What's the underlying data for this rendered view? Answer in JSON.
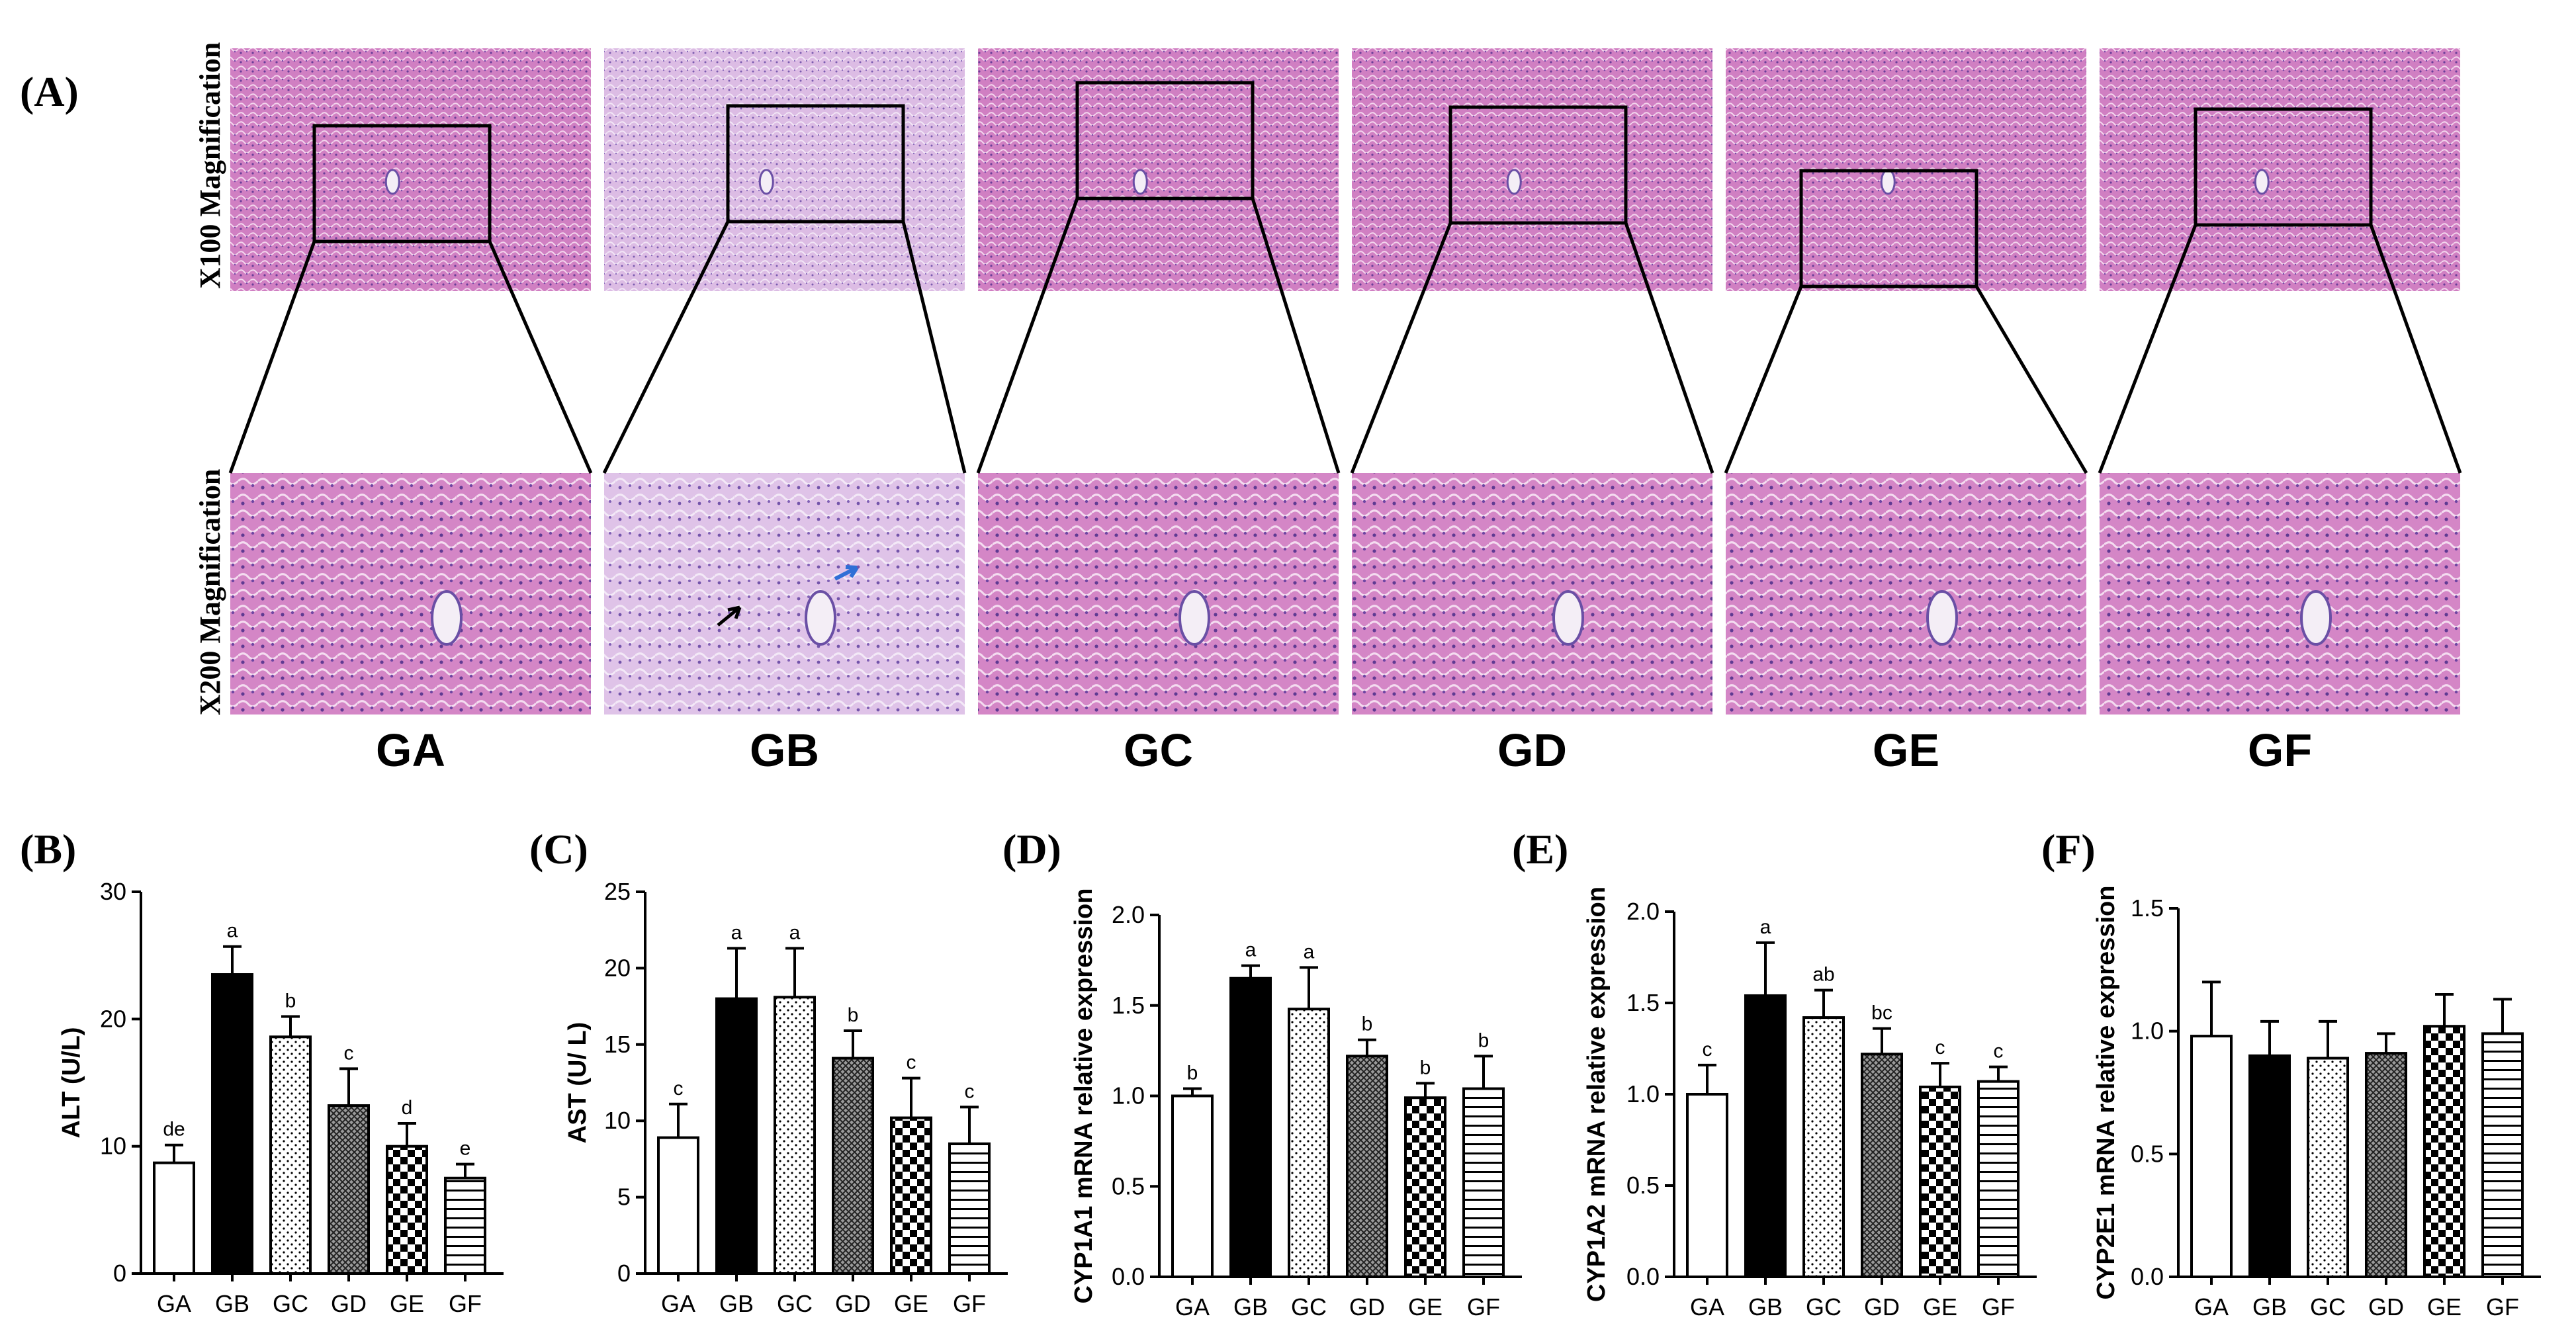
{
  "panel_a": {
    "label": "(A)",
    "row_labels": [
      "X100 Magnification",
      "X200 Magnification"
    ],
    "groups": [
      "GA",
      "GB",
      "GC",
      "GD",
      "GE",
      "GF"
    ]
  },
  "colors": {
    "tissue_light": "#d58cc7",
    "tissue_dark": "#b95aa8",
    "tissue_pale": "#ddb6e2",
    "stain_purple": "#6a4fa5",
    "bar_black": "#000000",
    "bar_white": "#ffffff"
  },
  "chart_data": [
    {
      "type": "bar",
      "panel_label": "(B)",
      "ylabel": "ALT (U/L)",
      "categories": [
        "GA",
        "GB",
        "GC",
        "GD",
        "GE",
        "GF"
      ],
      "values": [
        8.7,
        23.5,
        18.6,
        13.2,
        10.0,
        7.5
      ],
      "errors": [
        1.4,
        2.2,
        1.6,
        2.9,
        1.8,
        1.1
      ],
      "letters": [
        "de",
        "a",
        "b",
        "c",
        "d",
        "e"
      ],
      "patterns": [
        "white",
        "black",
        "dots",
        "cross",
        "checker",
        "hlines"
      ],
      "ylim": [
        0,
        30
      ],
      "yticks": [
        0,
        10,
        20,
        30
      ],
      "ytick_labels": [
        "0",
        "10",
        "20",
        "30"
      ]
    },
    {
      "type": "bar",
      "panel_label": "(C)",
      "ylabel": "AST (U/ L)",
      "categories": [
        "GA",
        "GB",
        "GC",
        "GD",
        "GE",
        "GF"
      ],
      "values": [
        8.9,
        18.0,
        18.1,
        14.1,
        10.2,
        8.5
      ],
      "errors": [
        2.2,
        3.3,
        3.2,
        1.8,
        2.6,
        2.4
      ],
      "letters": [
        "c",
        "a",
        "a",
        "b",
        "c",
        "c"
      ],
      "patterns": [
        "white",
        "black",
        "dots",
        "cross",
        "checker",
        "hlines"
      ],
      "ylim": [
        0,
        25
      ],
      "yticks": [
        0,
        5,
        10,
        15,
        20,
        25
      ],
      "ytick_labels": [
        "0",
        "5",
        "10",
        "15",
        "20",
        "25"
      ]
    },
    {
      "type": "bar",
      "panel_label": "(D)",
      "ylabel": "CYP1A1 mRNA relative expression",
      "categories": [
        "GA",
        "GB",
        "GC",
        "GD",
        "GE",
        "GF"
      ],
      "values": [
        1.0,
        1.65,
        1.48,
        1.22,
        0.99,
        1.04
      ],
      "errors": [
        0.04,
        0.07,
        0.23,
        0.09,
        0.08,
        0.18
      ],
      "letters": [
        "b",
        "a",
        "a",
        "b",
        "b",
        "b"
      ],
      "patterns": [
        "white",
        "black",
        "dots",
        "cross",
        "checker",
        "hlines"
      ],
      "ylim": [
        0,
        2.0
      ],
      "yticks": [
        0,
        0.5,
        1.0,
        1.5,
        2.0
      ],
      "ytick_labels": [
        "0.0",
        "0.5",
        "1.0",
        "1.5",
        "2.0"
      ]
    },
    {
      "type": "bar",
      "panel_label": "(E)",
      "ylabel": "CYP1A2 mRNA relative expression",
      "categories": [
        "GA",
        "GB",
        "GC",
        "GD",
        "GE",
        "GF"
      ],
      "values": [
        1.0,
        1.54,
        1.42,
        1.22,
        1.04,
        1.07
      ],
      "errors": [
        0.16,
        0.29,
        0.15,
        0.14,
        0.13,
        0.08
      ],
      "letters": [
        "c",
        "a",
        "ab",
        "bc",
        "c",
        "c"
      ],
      "patterns": [
        "white",
        "black",
        "dots",
        "cross",
        "checker",
        "hlines"
      ],
      "ylim": [
        0,
        2.0
      ],
      "yticks": [
        0,
        0.5,
        1.0,
        1.5,
        2.0
      ],
      "ytick_labels": [
        "0.0",
        "0.5",
        "1.0",
        "1.5",
        "2.0"
      ]
    },
    {
      "type": "bar",
      "panel_label": "(F)",
      "ylabel": "CYP2E1 mRNA relative expression",
      "categories": [
        "GA",
        "GB",
        "GC",
        "GD",
        "GE",
        "GF"
      ],
      "values": [
        0.98,
        0.9,
        0.89,
        0.91,
        1.02,
        0.99
      ],
      "errors": [
        0.22,
        0.14,
        0.15,
        0.08,
        0.13,
        0.14
      ],
      "letters": [
        "",
        "",
        "",
        "",
        "",
        ""
      ],
      "patterns": [
        "white",
        "black",
        "dots",
        "cross",
        "checker",
        "hlines"
      ],
      "ylim": [
        0,
        1.5
      ],
      "yticks": [
        0,
        0.5,
        1.0,
        1.5
      ],
      "ytick_labels": [
        "0.0",
        "0.5",
        "1.0",
        "1.5"
      ]
    }
  ]
}
